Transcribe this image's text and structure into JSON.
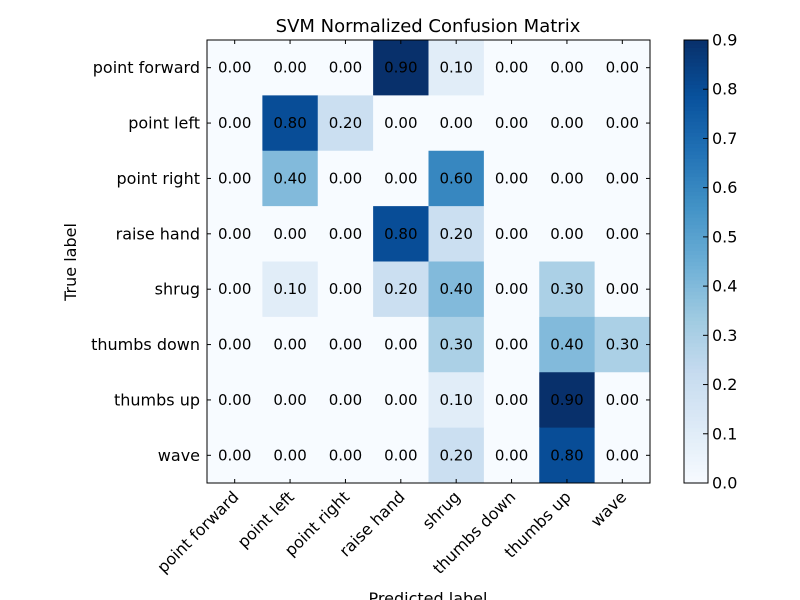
{
  "chart_data": {
    "type": "heatmap",
    "title": "SVM Normalized Confusion Matrix",
    "xlabel": "Predicted label",
    "ylabel": "True label",
    "x_categories": [
      "point forward",
      "point left",
      "point right",
      "raise hand",
      "shrug",
      "thumbs down",
      "thumbs up",
      "wave"
    ],
    "y_categories": [
      "point forward",
      "point left",
      "point right",
      "raise hand",
      "shrug",
      "thumbs down",
      "thumbs up",
      "wave"
    ],
    "values": [
      [
        0.0,
        0.0,
        0.0,
        0.9,
        0.1,
        0.0,
        0.0,
        0.0
      ],
      [
        0.0,
        0.8,
        0.2,
        0.0,
        0.0,
        0.0,
        0.0,
        0.0
      ],
      [
        0.0,
        0.4,
        0.0,
        0.0,
        0.6,
        0.0,
        0.0,
        0.0
      ],
      [
        0.0,
        0.0,
        0.0,
        0.8,
        0.2,
        0.0,
        0.0,
        0.0
      ],
      [
        0.0,
        0.1,
        0.0,
        0.2,
        0.4,
        0.0,
        0.3,
        0.0
      ],
      [
        0.0,
        0.0,
        0.0,
        0.0,
        0.3,
        0.0,
        0.4,
        0.3
      ],
      [
        0.0,
        0.0,
        0.0,
        0.0,
        0.1,
        0.0,
        0.9,
        0.0
      ],
      [
        0.0,
        0.0,
        0.0,
        0.0,
        0.2,
        0.0,
        0.8,
        0.0
      ]
    ],
    "value_format": "0.00",
    "colormap": "Blues",
    "color_range": [
      0.0,
      0.9
    ],
    "colorbar_ticks": [
      "0.0",
      "0.1",
      "0.2",
      "0.3",
      "0.4",
      "0.5",
      "0.6",
      "0.7",
      "0.8",
      "0.9"
    ],
    "colorbar_placement": "right",
    "grid": false
  }
}
